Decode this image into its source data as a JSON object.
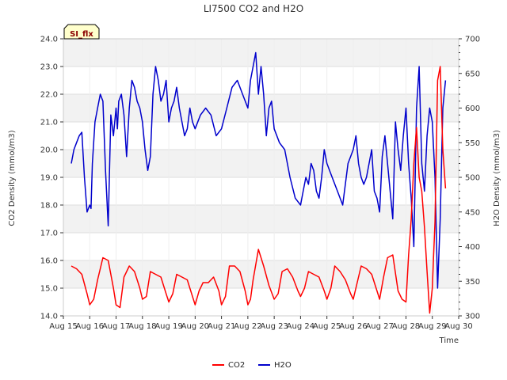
{
  "chart_data": {
    "type": "line",
    "title": "LI7500 CO2 and H2O",
    "badge": "SI_flx",
    "xlabel": "Time",
    "ylabel_left": "CO2 Density (mmol/m3)",
    "ylabel_right": "H2O Density (mmol/m3)",
    "x_ticks": [
      "Aug 15",
      "Aug 16",
      "Aug 17",
      "Aug 18",
      "Aug 19",
      "Aug 20",
      "Aug 21",
      "Aug 22",
      "Aug 23",
      "Aug 24",
      "Aug 25",
      "Aug 26",
      "Aug 27",
      "Aug 28",
      "Aug 29",
      "Aug 30"
    ],
    "xlim": [
      15,
      30
    ],
    "ylim_left": [
      14.0,
      24.0
    ],
    "ylim_right": [
      300,
      700
    ],
    "y_ticks_left": [
      "14.0",
      "15.0",
      "16.0",
      "17.0",
      "18.0",
      "19.0",
      "20.0",
      "21.0",
      "22.0",
      "23.0",
      "24.0"
    ],
    "y_ticks_right": [
      "300",
      "350",
      "400",
      "450",
      "500",
      "550",
      "600",
      "650",
      "700"
    ],
    "grid": true,
    "legend_position": "bottom-center",
    "colors": {
      "co2": "#ff0000",
      "h2o": "#0000cc",
      "band": "#f2f2f2",
      "badge_bg": "#ffffcc"
    },
    "series": [
      {
        "name": "CO2",
        "axis": "left",
        "x": [
          15.3,
          15.5,
          15.7,
          15.9,
          16.0,
          16.15,
          16.3,
          16.5,
          16.7,
          16.9,
          17.0,
          17.15,
          17.3,
          17.5,
          17.7,
          17.9,
          18.0,
          18.15,
          18.3,
          18.5,
          18.7,
          18.9,
          19.0,
          19.15,
          19.3,
          19.5,
          19.7,
          19.9,
          20.0,
          20.15,
          20.3,
          20.5,
          20.7,
          20.9,
          21.0,
          21.15,
          21.3,
          21.5,
          21.7,
          21.9,
          22.0,
          22.1,
          22.2,
          22.4,
          22.6,
          22.8,
          23.0,
          23.15,
          23.3,
          23.5,
          23.7,
          23.9,
          24.0,
          24.15,
          24.3,
          24.5,
          24.7,
          24.9,
          25.0,
          25.15,
          25.3,
          25.5,
          25.7,
          25.9,
          26.0,
          26.15,
          26.3,
          26.5,
          26.7,
          26.9,
          27.0,
          27.15,
          27.3,
          27.5,
          27.7,
          27.85,
          28.0,
          28.1,
          28.2,
          28.3,
          28.4,
          28.5,
          28.6,
          28.7,
          28.8,
          28.9,
          29.0,
          29.1,
          29.2,
          29.3,
          29.4,
          29.5
        ],
        "y": [
          15.8,
          15.7,
          15.5,
          14.8,
          14.4,
          14.6,
          15.3,
          16.1,
          16.0,
          15.0,
          14.4,
          14.3,
          15.4,
          15.8,
          15.6,
          15.0,
          14.6,
          14.7,
          15.6,
          15.5,
          15.4,
          14.8,
          14.5,
          14.8,
          15.5,
          15.4,
          15.3,
          14.7,
          14.4,
          14.9,
          15.2,
          15.2,
          15.4,
          14.9,
          14.4,
          14.7,
          15.8,
          15.8,
          15.6,
          14.9,
          14.4,
          14.6,
          15.3,
          16.4,
          15.8,
          15.1,
          14.6,
          14.8,
          15.6,
          15.7,
          15.4,
          14.9,
          14.7,
          15.0,
          15.6,
          15.5,
          15.4,
          14.9,
          14.6,
          15.0,
          15.8,
          15.6,
          15.3,
          14.8,
          14.6,
          15.2,
          15.8,
          15.7,
          15.5,
          14.9,
          14.6,
          15.4,
          16.1,
          16.2,
          14.9,
          14.6,
          14.5,
          16.2,
          17.5,
          19.5,
          20.8,
          19.0,
          18.5,
          17.2,
          15.6,
          14.1,
          15.0,
          17.4,
          22.5,
          23.0,
          20.0,
          18.6
        ]
      },
      {
        "name": "H2O",
        "axis": "right",
        "x": [
          15.3,
          15.4,
          15.5,
          15.6,
          15.7,
          15.8,
          15.9,
          16.0,
          16.05,
          16.1,
          16.2,
          16.3,
          16.4,
          16.5,
          16.6,
          16.7,
          16.8,
          16.9,
          17.0,
          17.05,
          17.1,
          17.2,
          17.3,
          17.4,
          17.5,
          17.6,
          17.7,
          17.8,
          17.9,
          18.0,
          18.1,
          18.2,
          18.3,
          18.4,
          18.5,
          18.6,
          18.7,
          18.8,
          18.9,
          19.0,
          19.1,
          19.2,
          19.3,
          19.4,
          19.5,
          19.6,
          19.7,
          19.8,
          19.9,
          20.0,
          20.2,
          20.4,
          20.6,
          20.8,
          21.0,
          21.2,
          21.4,
          21.6,
          21.8,
          22.0,
          22.1,
          22.2,
          22.3,
          22.4,
          22.5,
          22.6,
          22.7,
          22.8,
          22.9,
          23.0,
          23.2,
          23.4,
          23.6,
          23.8,
          24.0,
          24.1,
          24.2,
          24.3,
          24.4,
          24.5,
          24.6,
          24.7,
          24.8,
          24.9,
          25.0,
          25.2,
          25.4,
          25.6,
          25.8,
          26.0,
          26.1,
          26.2,
          26.3,
          26.4,
          26.5,
          26.6,
          26.7,
          26.8,
          26.9,
          27.0,
          27.1,
          27.2,
          27.3,
          27.4,
          27.5,
          27.6,
          27.7,
          27.8,
          27.9,
          28.0,
          28.1,
          28.2,
          28.3,
          28.4,
          28.5,
          28.6,
          28.7,
          28.8,
          28.9,
          29.0,
          29.1,
          29.2,
          29.3,
          29.4,
          29.5
        ],
        "y": [
          520,
          540,
          550,
          560,
          565,
          500,
          450,
          460,
          455,
          520,
          580,
          600,
          620,
          610,
          510,
          430,
          590,
          560,
          600,
          570,
          610,
          620,
          590,
          530,
          600,
          640,
          630,
          610,
          600,
          580,
          540,
          510,
          530,
          620,
          660,
          640,
          610,
          620,
          640,
          580,
          600,
          610,
          630,
          600,
          580,
          560,
          570,
          600,
          580,
          570,
          590,
          600,
          590,
          560,
          570,
          600,
          630,
          640,
          620,
          600,
          640,
          660,
          680,
          620,
          660,
          620,
          560,
          600,
          610,
          570,
          550,
          540,
          500,
          470,
          460,
          480,
          500,
          490,
          520,
          510,
          480,
          470,
          500,
          540,
          520,
          500,
          480,
          460,
          520,
          540,
          560,
          520,
          500,
          490,
          500,
          520,
          540,
          480,
          470,
          450,
          530,
          560,
          520,
          480,
          440,
          580,
          540,
          510,
          560,
          600,
          520,
          470,
          400,
          600,
          660,
          520,
          480,
          560,
          600,
          580,
          500,
          340,
          440,
          600,
          640
        ]
      }
    ]
  }
}
